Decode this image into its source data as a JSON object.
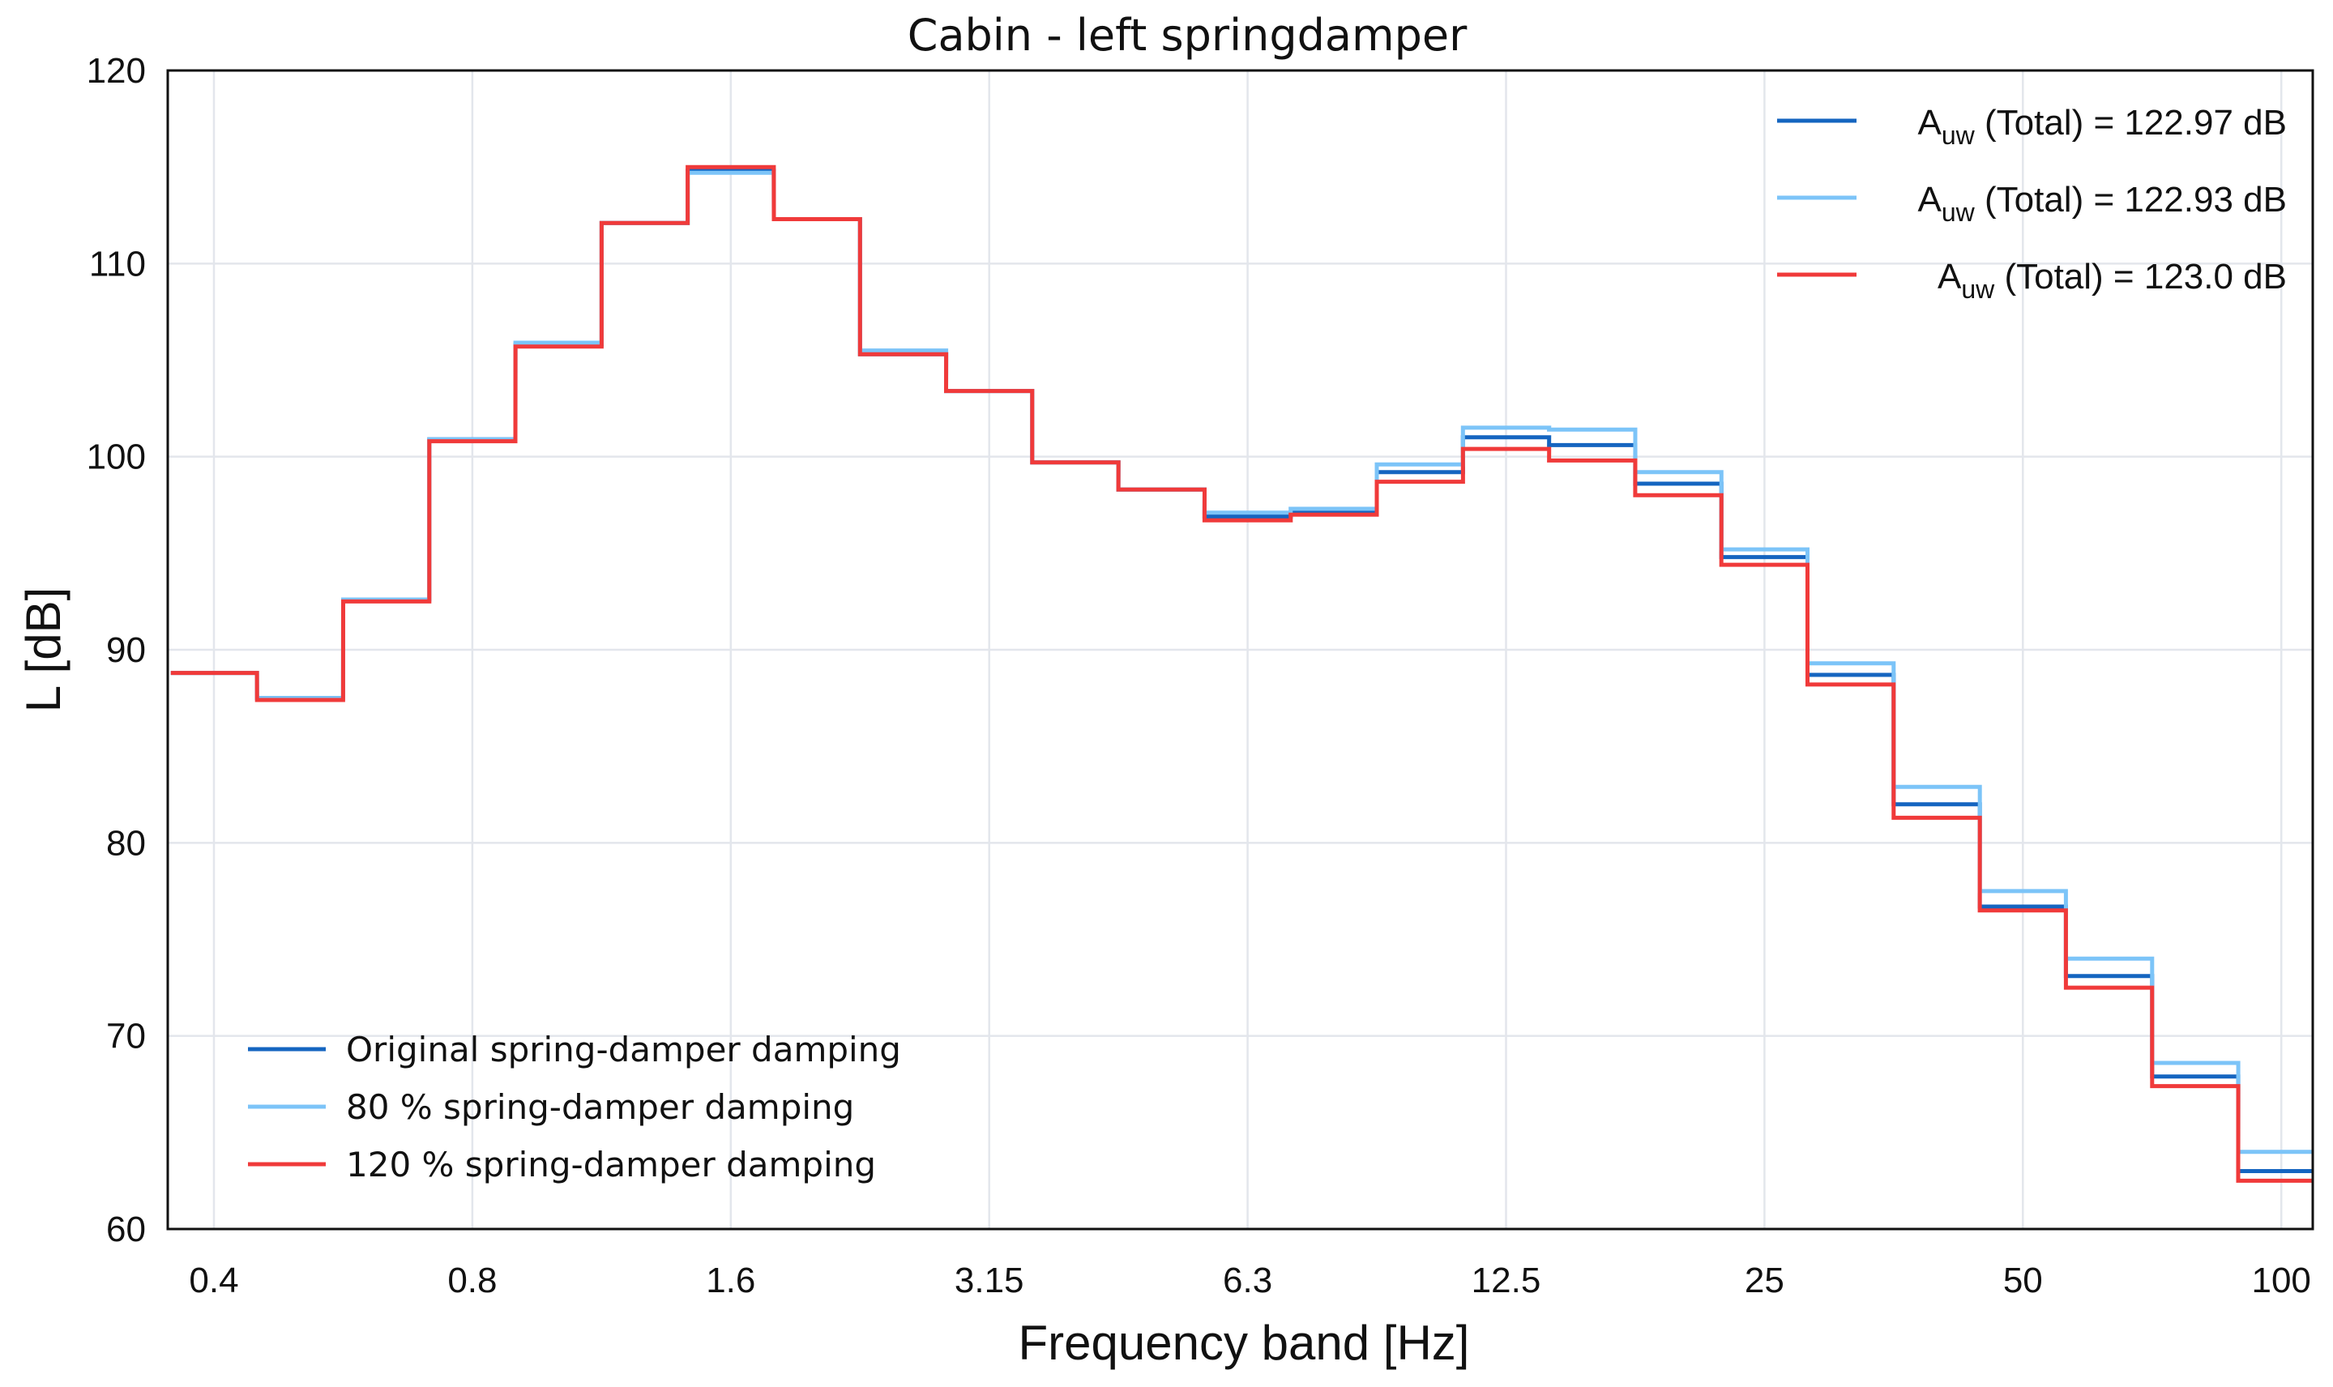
{
  "chart_data": {
    "type": "line",
    "style": "step",
    "title": "Cabin - left springdamper",
    "xlabel": "Frequency band [Hz]",
    "ylabel": "L [dB]",
    "ylim": [
      60,
      120
    ],
    "yticks": [
      60,
      70,
      80,
      90,
      100,
      110,
      120
    ],
    "band_count": 25,
    "xticks": [
      {
        "band": 0,
        "label": "0.4"
      },
      {
        "band": 3,
        "label": "0.8"
      },
      {
        "band": 6,
        "label": "1.6"
      },
      {
        "band": 9,
        "label": "3.15"
      },
      {
        "band": 12,
        "label": "6.3"
      },
      {
        "band": 15,
        "label": "12.5"
      },
      {
        "band": 18,
        "label": "25"
      },
      {
        "band": 21,
        "label": "50"
      },
      {
        "band": 24,
        "label": "100"
      }
    ],
    "grid": true,
    "series": [
      {
        "name": "Original spring-damper damping",
        "color": "#1565c0",
        "values": [
          88.8,
          87.5,
          92.6,
          100.9,
          105.8,
          112.1,
          114.8,
          112.3,
          105.3,
          103.4,
          99.7,
          98.3,
          96.9,
          97.1,
          99.2,
          101.0,
          100.6,
          98.6,
          94.8,
          88.7,
          82.0,
          76.7,
          73.1,
          67.9,
          63.0
        ]
      },
      {
        "name": "80 % spring-damper damping",
        "color": "#7cc4f8",
        "values": [
          88.8,
          87.5,
          92.6,
          100.9,
          105.9,
          112.1,
          114.7,
          112.3,
          105.5,
          103.4,
          99.7,
          98.3,
          97.1,
          97.3,
          99.6,
          101.5,
          101.4,
          99.2,
          95.2,
          89.3,
          82.9,
          77.5,
          74.0,
          68.6,
          64.0
        ]
      },
      {
        "name": "120 % spring-damper damping",
        "color": "#f03a3a",
        "values": [
          88.8,
          87.4,
          92.5,
          100.8,
          105.7,
          112.1,
          115.0,
          112.3,
          105.3,
          103.4,
          99.7,
          98.3,
          96.7,
          97.0,
          98.7,
          100.4,
          99.8,
          98.0,
          94.4,
          88.2,
          81.3,
          76.5,
          72.5,
          67.4,
          62.5
        ]
      }
    ],
    "legend": {
      "placement": "bottom-left",
      "entries": [
        {
          "label": "Original spring-damper damping",
          "color": "#1565c0"
        },
        {
          "label": "80 % spring-damper damping",
          "color": "#7cc4f8"
        },
        {
          "label": "120 % spring-damper damping",
          "color": "#f03a3a"
        }
      ]
    },
    "totals": {
      "placement": "top-right",
      "entries": [
        {
          "symbol": "A",
          "subscript": "uw",
          "text": " (Total) = 122.97 dB",
          "color": "#1565c0"
        },
        {
          "symbol": "A",
          "subscript": "uw",
          "text": " (Total) = 122.93 dB",
          "color": "#7cc4f8"
        },
        {
          "symbol": "A",
          "subscript": "uw",
          "text": " (Total) = 123.0 dB",
          "color": "#f03a3a"
        }
      ]
    }
  }
}
